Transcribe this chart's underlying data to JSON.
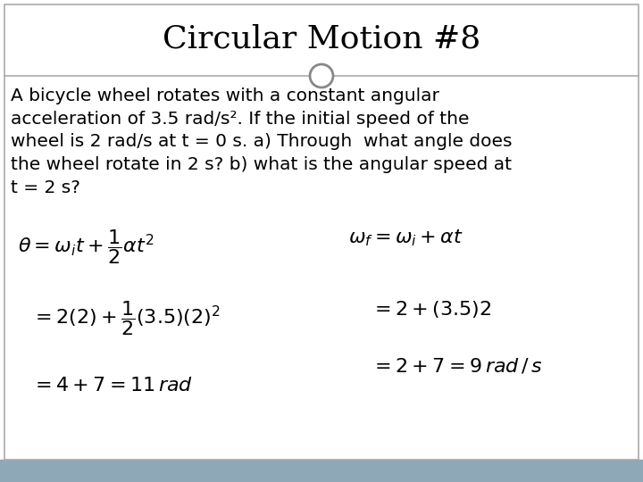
{
  "title": "Circular Motion #8",
  "background_color": "#ffffff",
  "footer_color": "#8FA8B8",
  "title_fontsize": 26,
  "body_text": "A bicycle wheel rotates with a constant angular\nacceleration of 3.5 rad/s². If the initial speed of the\nwheel is 2 rad/s at t = 0 s. a) Through  what angle does\nthe wheel rotate in 2 s? b) what is the angular speed at\nt = 2 s?",
  "body_fontsize": 14.5,
  "border_color": "#aaaaaa",
  "circle_color": "#888888",
  "eq_fontsize": 16
}
